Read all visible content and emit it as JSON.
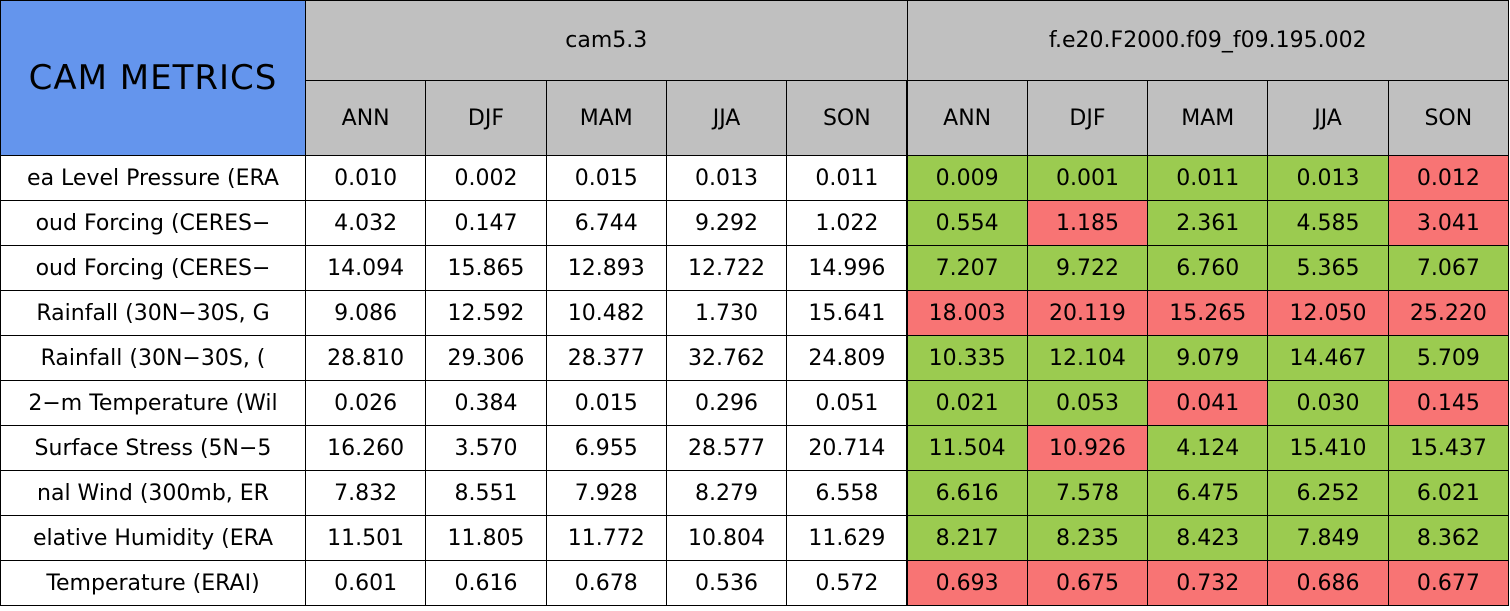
{
  "header": {
    "title": "CAM METRICS",
    "title_color": "#6495ed",
    "header_color": "#c0c0c0",
    "groups": [
      "cam5.3",
      "f.e20.F2000.f09_f09.195.002"
    ],
    "seasons": [
      [
        "ANN",
        "DJF",
        "MAM",
        "JJA",
        "SON"
      ],
      [
        "ANN",
        "DJF",
        "MAM",
        "JJA",
        "SON"
      ]
    ]
  },
  "table": {
    "rows": [
      {
        "label": "ea Level Pressure (ERA",
        "cells": [
          "0.010",
          "0.002",
          "0.015",
          "0.013",
          "0.011",
          "0.009",
          "0.001",
          "0.011",
          "0.013",
          "0.012"
        ],
        "colors": [
          "#ffffff",
          "#ffffff",
          "#ffffff",
          "#ffffff",
          "#ffffff",
          "#9bcb50",
          "#9bcb50",
          "#9bcb50",
          "#9bcb50",
          "#f87474"
        ]
      },
      {
        "label": "oud Forcing (CERES−",
        "cells": [
          "4.032",
          "0.147",
          "6.744",
          "9.292",
          "1.022",
          "0.554",
          "1.185",
          "2.361",
          "4.585",
          "3.041"
        ],
        "colors": [
          "#ffffff",
          "#ffffff",
          "#ffffff",
          "#ffffff",
          "#ffffff",
          "#9bcb50",
          "#f87474",
          "#9bcb50",
          "#9bcb50",
          "#f87474"
        ]
      },
      {
        "label": "oud Forcing (CERES−",
        "cells": [
          "14.094",
          "15.865",
          "12.893",
          "12.722",
          "14.996",
          "7.207",
          "9.722",
          "6.760",
          "5.365",
          "7.067"
        ],
        "colors": [
          "#ffffff",
          "#ffffff",
          "#ffffff",
          "#ffffff",
          "#ffffff",
          "#9bcb50",
          "#9bcb50",
          "#9bcb50",
          "#9bcb50",
          "#9bcb50"
        ]
      },
      {
        "label": "Rainfall (30N−30S, G",
        "cells": [
          "9.086",
          "12.592",
          "10.482",
          "1.730",
          "15.641",
          "18.003",
          "20.119",
          "15.265",
          "12.050",
          "25.220"
        ],
        "colors": [
          "#ffffff",
          "#ffffff",
          "#ffffff",
          "#ffffff",
          "#ffffff",
          "#f87474",
          "#f87474",
          "#f87474",
          "#f87474",
          "#f87474"
        ]
      },
      {
        "label": "Rainfall (30N−30S, (",
        "cells": [
          "28.810",
          "29.306",
          "28.377",
          "32.762",
          "24.809",
          "10.335",
          "12.104",
          "9.079",
          "14.467",
          "5.709"
        ],
        "colors": [
          "#ffffff",
          "#ffffff",
          "#ffffff",
          "#ffffff",
          "#ffffff",
          "#9bcb50",
          "#9bcb50",
          "#9bcb50",
          "#9bcb50",
          "#9bcb50"
        ]
      },
      {
        "label": "2−m Temperature (Wil",
        "cells": [
          "0.026",
          "0.384",
          "0.015",
          "0.296",
          "0.051",
          "0.021",
          "0.053",
          "0.041",
          "0.030",
          "0.145"
        ],
        "colors": [
          "#ffffff",
          "#ffffff",
          "#ffffff",
          "#ffffff",
          "#ffffff",
          "#9bcb50",
          "#9bcb50",
          "#f87474",
          "#9bcb50",
          "#f87474"
        ]
      },
      {
        "label": "Surface Stress (5N−5",
        "cells": [
          "16.260",
          "3.570",
          "6.955",
          "28.577",
          "20.714",
          "11.504",
          "10.926",
          "4.124",
          "15.410",
          "15.437"
        ],
        "colors": [
          "#ffffff",
          "#ffffff",
          "#ffffff",
          "#ffffff",
          "#ffffff",
          "#9bcb50",
          "#f87474",
          "#9bcb50",
          "#9bcb50",
          "#9bcb50"
        ]
      },
      {
        "label": "nal Wind (300mb, ER",
        "cells": [
          "7.832",
          "8.551",
          "7.928",
          "8.279",
          "6.558",
          "6.616",
          "7.578",
          "6.475",
          "6.252",
          "6.021"
        ],
        "colors": [
          "#ffffff",
          "#ffffff",
          "#ffffff",
          "#ffffff",
          "#ffffff",
          "#9bcb50",
          "#9bcb50",
          "#9bcb50",
          "#9bcb50",
          "#9bcb50"
        ]
      },
      {
        "label": "elative Humidity (ERA",
        "cells": [
          "11.501",
          "11.805",
          "11.772",
          "10.804",
          "11.629",
          "8.217",
          "8.235",
          "8.423",
          "7.849",
          "8.362"
        ],
        "colors": [
          "#ffffff",
          "#ffffff",
          "#ffffff",
          "#ffffff",
          "#ffffff",
          "#9bcb50",
          "#9bcb50",
          "#9bcb50",
          "#9bcb50",
          "#9bcb50"
        ]
      },
      {
        "label": "Temperature (ERAI)",
        "cells": [
          "0.601",
          "0.616",
          "0.678",
          "0.536",
          "0.572",
          "0.693",
          "0.675",
          "0.732",
          "0.686",
          "0.677"
        ],
        "colors": [
          "#ffffff",
          "#ffffff",
          "#ffffff",
          "#ffffff",
          "#ffffff",
          "#f87474",
          "#f87474",
          "#f87474",
          "#f87474",
          "#f87474"
        ]
      }
    ]
  }
}
